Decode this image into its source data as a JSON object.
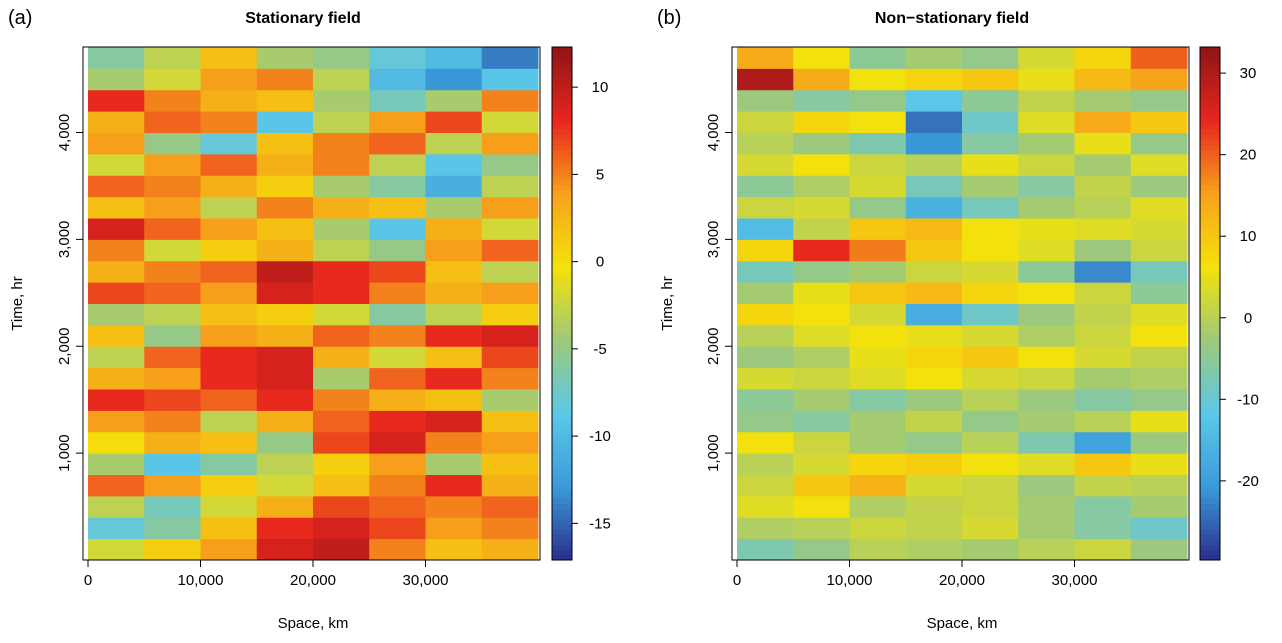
{
  "chart_data": [
    {
      "type": "heatmap",
      "panel_label": "(a)",
      "title": "Stationary field",
      "xlabel": "Space, km",
      "ylabel": "Time, hr",
      "xlim": [
        0,
        40000
      ],
      "ylim": [
        0,
        4800
      ],
      "xticks": [
        0,
        {
          "value": 10000,
          "label": "10,000"
        },
        {
          "value": 20000,
          "label": "20,000"
        },
        {
          "value": 30000,
          "label": "30,000"
        }
      ],
      "yticks": [
        {
          "value": 1000,
          "label": "1,000"
        },
        {
          "value": 2000,
          "label": "2,000"
        },
        {
          "value": 3000,
          "label": "3,000"
        },
        {
          "value": 4000,
          "label": "4,000"
        }
      ],
      "zlim": [
        -17.1,
        12.3
      ],
      "zticks": [
        -15,
        -10,
        -5,
        0,
        5,
        10
      ],
      "colormap": [
        "#2b2d8c",
        "#3a9ad8",
        "#5bc8e8",
        "#9ec97a",
        "#f4e20a",
        "#f7a21b",
        "#e8261e",
        "#8e1416"
      ],
      "x": [
        2500,
        7500,
        12500,
        17500,
        22500,
        27500,
        32500,
        37500
      ],
      "y": [
        100,
        300,
        500,
        700,
        900,
        1100,
        1300,
        1500,
        1700,
        1900,
        2100,
        2300,
        2500,
        2700,
        2900,
        3100,
        3300,
        3500,
        3700,
        3900,
        4100,
        4300,
        4500,
        4700
      ],
      "z": [
        [
          -2,
          1,
          4,
          9,
          10,
          5,
          2,
          3
        ],
        [
          -8,
          -6,
          2,
          8,
          9,
          7,
          4,
          5
        ],
        [
          -3,
          -7,
          -2,
          3,
          7,
          6,
          5,
          6
        ],
        [
          6,
          4,
          1,
          -2,
          2,
          5,
          8,
          3
        ],
        [
          -4,
          -9,
          -6,
          -3,
          1,
          4,
          -4,
          2
        ],
        [
          0,
          3,
          2,
          -5,
          7,
          9,
          5,
          4
        ],
        [
          4,
          5,
          -3,
          3,
          6,
          8,
          9,
          2
        ],
        [
          8,
          7,
          6,
          8,
          5,
          3,
          2,
          -4
        ],
        [
          3,
          4,
          8,
          9,
          -4,
          6,
          8,
          5
        ],
        [
          -3,
          6,
          8,
          9,
          3,
          -2,
          2,
          7
        ],
        [
          2,
          -5,
          4,
          3,
          6,
          5,
          8,
          9
        ],
        [
          -4,
          -3,
          2,
          1,
          -2,
          -6,
          -3,
          1
        ],
        [
          7,
          6,
          4,
          9,
          8,
          5,
          3,
          4
        ],
        [
          3,
          5,
          6,
          10,
          8,
          7,
          2,
          -3
        ],
        [
          5,
          -2,
          1,
          3,
          -3,
          -5,
          4,
          6
        ],
        [
          9,
          6,
          4,
          2,
          -4,
          -9,
          3,
          -2
        ],
        [
          2,
          4,
          -3,
          5,
          3,
          2,
          -4,
          4
        ],
        [
          6,
          5,
          3,
          1,
          -4,
          -6,
          -11,
          -3
        ],
        [
          -2,
          4,
          6,
          3,
          5,
          -3,
          -9,
          -5
        ],
        [
          4,
          -5,
          -8,
          2,
          5,
          6,
          -3,
          4
        ],
        [
          3,
          6,
          5,
          -9,
          -3,
          4,
          7,
          -2
        ],
        [
          8,
          5,
          3,
          2,
          -4,
          -7,
          -4,
          5
        ],
        [
          -4,
          -2,
          4,
          5,
          -3,
          -10,
          -13,
          -9
        ],
        [
          -6,
          -3,
          2,
          -4,
          -5,
          -8,
          -10,
          -14
        ]
      ]
    },
    {
      "type": "heatmap",
      "panel_label": "(b)",
      "title": "Non−stationary field",
      "xlabel": "Space, km",
      "ylabel": "Time, hr",
      "xlim": [
        0,
        40000
      ],
      "ylim": [
        0,
        4800
      ],
      "xticks": [
        0,
        {
          "value": 10000,
          "label": "10,000"
        },
        {
          "value": 20000,
          "label": "20,000"
        },
        {
          "value": 30000,
          "label": "30,000"
        }
      ],
      "yticks": [
        {
          "value": 1000,
          "label": "1,000"
        },
        {
          "value": 2000,
          "label": "2,000"
        },
        {
          "value": 3000,
          "label": "3,000"
        },
        {
          "value": 4000,
          "label": "4,000"
        }
      ],
      "zlim": [
        -29.7,
        33.2
      ],
      "zticks": [
        -20,
        -10,
        0,
        10,
        20,
        30
      ],
      "colormap": [
        "#2b2d8c",
        "#3a9ad8",
        "#5bc8e8",
        "#9ec97a",
        "#f4e20a",
        "#f7a21b",
        "#e8261e",
        "#8e1416"
      ],
      "x": [
        2500,
        7500,
        12500,
        17500,
        22500,
        27500,
        32500,
        37500
      ],
      "y": [
        100,
        300,
        500,
        700,
        900,
        1100,
        1300,
        1500,
        1700,
        1900,
        2100,
        2300,
        2500,
        2700,
        2900,
        3100,
        3300,
        3500,
        3700,
        3900,
        4100,
        4300,
        4500,
        4700
      ],
      "z": [
        [
          -7,
          -4,
          0,
          -1,
          -2,
          0,
          2,
          -3
        ],
        [
          -1,
          0,
          2,
          1,
          3,
          -2,
          -6,
          -9
        ],
        [
          4,
          6,
          -1,
          1,
          2,
          -2,
          -6,
          -2
        ],
        [
          2,
          10,
          13,
          3,
          2,
          -3,
          1,
          0
        ],
        [
          0,
          3,
          8,
          9,
          6,
          4,
          10,
          5
        ],
        [
          6,
          2,
          -2,
          -4,
          0,
          -7,
          -19,
          -3
        ],
        [
          -4,
          -6,
          -2,
          1,
          -4,
          -2,
          0,
          5
        ],
        [
          -5,
          -2,
          -6,
          -3,
          0,
          -3,
          -6,
          -4
        ],
        [
          3,
          2,
          4,
          6,
          3,
          2,
          -2,
          -1
        ],
        [
          -3,
          -1,
          5,
          8,
          10,
          6,
          3,
          1
        ],
        [
          0,
          4,
          6,
          5,
          3,
          -1,
          2,
          6
        ],
        [
          8,
          6,
          3,
          -17,
          -9,
          -3,
          1,
          4
        ],
        [
          -2,
          5,
          10,
          12,
          8,
          6,
          2,
          -5
        ],
        [
          -8,
          -4,
          -2,
          2,
          3,
          -5,
          -22,
          -8
        ],
        [
          8,
          24,
          18,
          10,
          6,
          4,
          -3,
          2
        ],
        [
          -14,
          1,
          10,
          12,
          6,
          5,
          4,
          3
        ],
        [
          2,
          3,
          -4,
          -16,
          -8,
          -2,
          0,
          4
        ],
        [
          -5,
          -1,
          3,
          -8,
          -2,
          -6,
          1,
          -3
        ],
        [
          3,
          6,
          2,
          0,
          5,
          2,
          -2,
          4
        ],
        [
          0,
          -3,
          -7,
          -21,
          -6,
          -2,
          5,
          -4
        ],
        [
          2,
          8,
          6,
          -24,
          -9,
          4,
          14,
          10
        ],
        [
          -3,
          -6,
          -4,
          -12,
          -5,
          1,
          -2,
          -4
        ],
        [
          30,
          14,
          6,
          8,
          10,
          5,
          12,
          15
        ],
        [
          14,
          6,
          -5,
          -2,
          -4,
          3,
          8,
          20
        ]
      ]
    }
  ]
}
